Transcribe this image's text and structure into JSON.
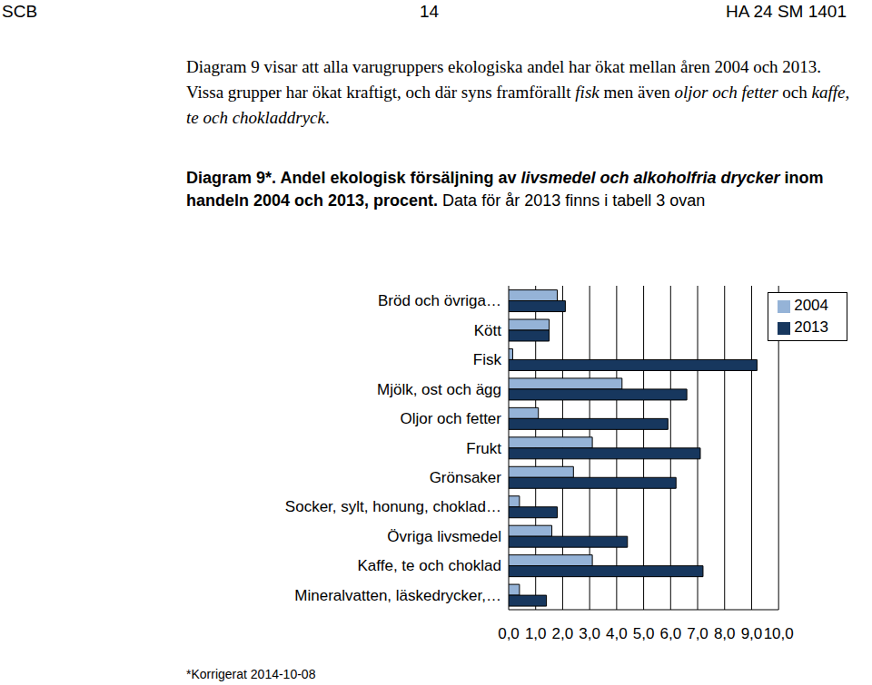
{
  "header": {
    "left": "SCB",
    "center": "14",
    "right": "HA 24 SM 1401"
  },
  "paragraph": [
    {
      "text": "Diagram 9 visar att alla varugruppers ekologiska andel har ökat mellan åren 2004 och 2013. Vissa grupper har ökat kraftigt, och där syns framförallt ",
      "italic": false
    },
    {
      "text": "fisk",
      "italic": true
    },
    {
      "text": " men även ",
      "italic": false
    },
    {
      "text": "oljor och fetter",
      "italic": true
    },
    {
      "text": " och ",
      "italic": false
    },
    {
      "text": "kaffe, te och chokladdryck",
      "italic": true
    },
    {
      "text": ".",
      "italic": false
    }
  ],
  "caption": [
    {
      "text": "Diagram 9*. Andel ekologisk försäljning av ",
      "bold": true,
      "italic": false
    },
    {
      "text": "livsmedel och alkoholfria drycker",
      "bold": true,
      "italic": true
    },
    {
      "text": " inom handeln 2004 och 2013, procent.",
      "bold": true,
      "italic": false
    },
    {
      "text": " Data för år 2013 finns i tabell 3 ovan",
      "bold": false,
      "italic": false
    }
  ],
  "chart_data": {
    "type": "bar",
    "orientation": "horizontal",
    "categories": [
      "Bröd och övriga…",
      "Kött",
      "Fisk",
      "Mjölk, ost och ägg",
      "Oljor och fetter",
      "Frukt",
      "Grönsaker",
      "Socker, sylt, honung, choklad…",
      "Övriga livsmedel",
      "Kaffe, te och choklad",
      "Mineralvatten, läskedrycker,…"
    ],
    "series": [
      {
        "name": "2004",
        "color": "#95b3d7",
        "values": [
          1.8,
          1.5,
          0.15,
          4.2,
          1.1,
          3.1,
          2.4,
          0.4,
          1.6,
          3.1,
          0.4
        ]
      },
      {
        "name": "2013",
        "color": "#17375e",
        "values": [
          2.1,
          1.5,
          9.2,
          6.6,
          5.9,
          7.1,
          6.2,
          1.8,
          4.4,
          7.2,
          1.4
        ]
      }
    ],
    "xlim": [
      0,
      10
    ],
    "xticks": [
      {
        "value": 0,
        "label": "0,0"
      },
      {
        "value": 1,
        "label": "1,0"
      },
      {
        "value": 2,
        "label": "2,0"
      },
      {
        "value": 3,
        "label": "3,0"
      },
      {
        "value": 4,
        "label": "4,0"
      },
      {
        "value": 5,
        "label": "5,0"
      },
      {
        "value": 6,
        "label": "6,0"
      },
      {
        "value": 7,
        "label": "7,0"
      },
      {
        "value": 8,
        "label": "8,0"
      },
      {
        "value": 9,
        "label": "9,0"
      },
      {
        "value": 10,
        "label": "10,0"
      }
    ],
    "grid": true,
    "legend": "upper right"
  },
  "footnote": "*Korrigerat 2014-10-08"
}
